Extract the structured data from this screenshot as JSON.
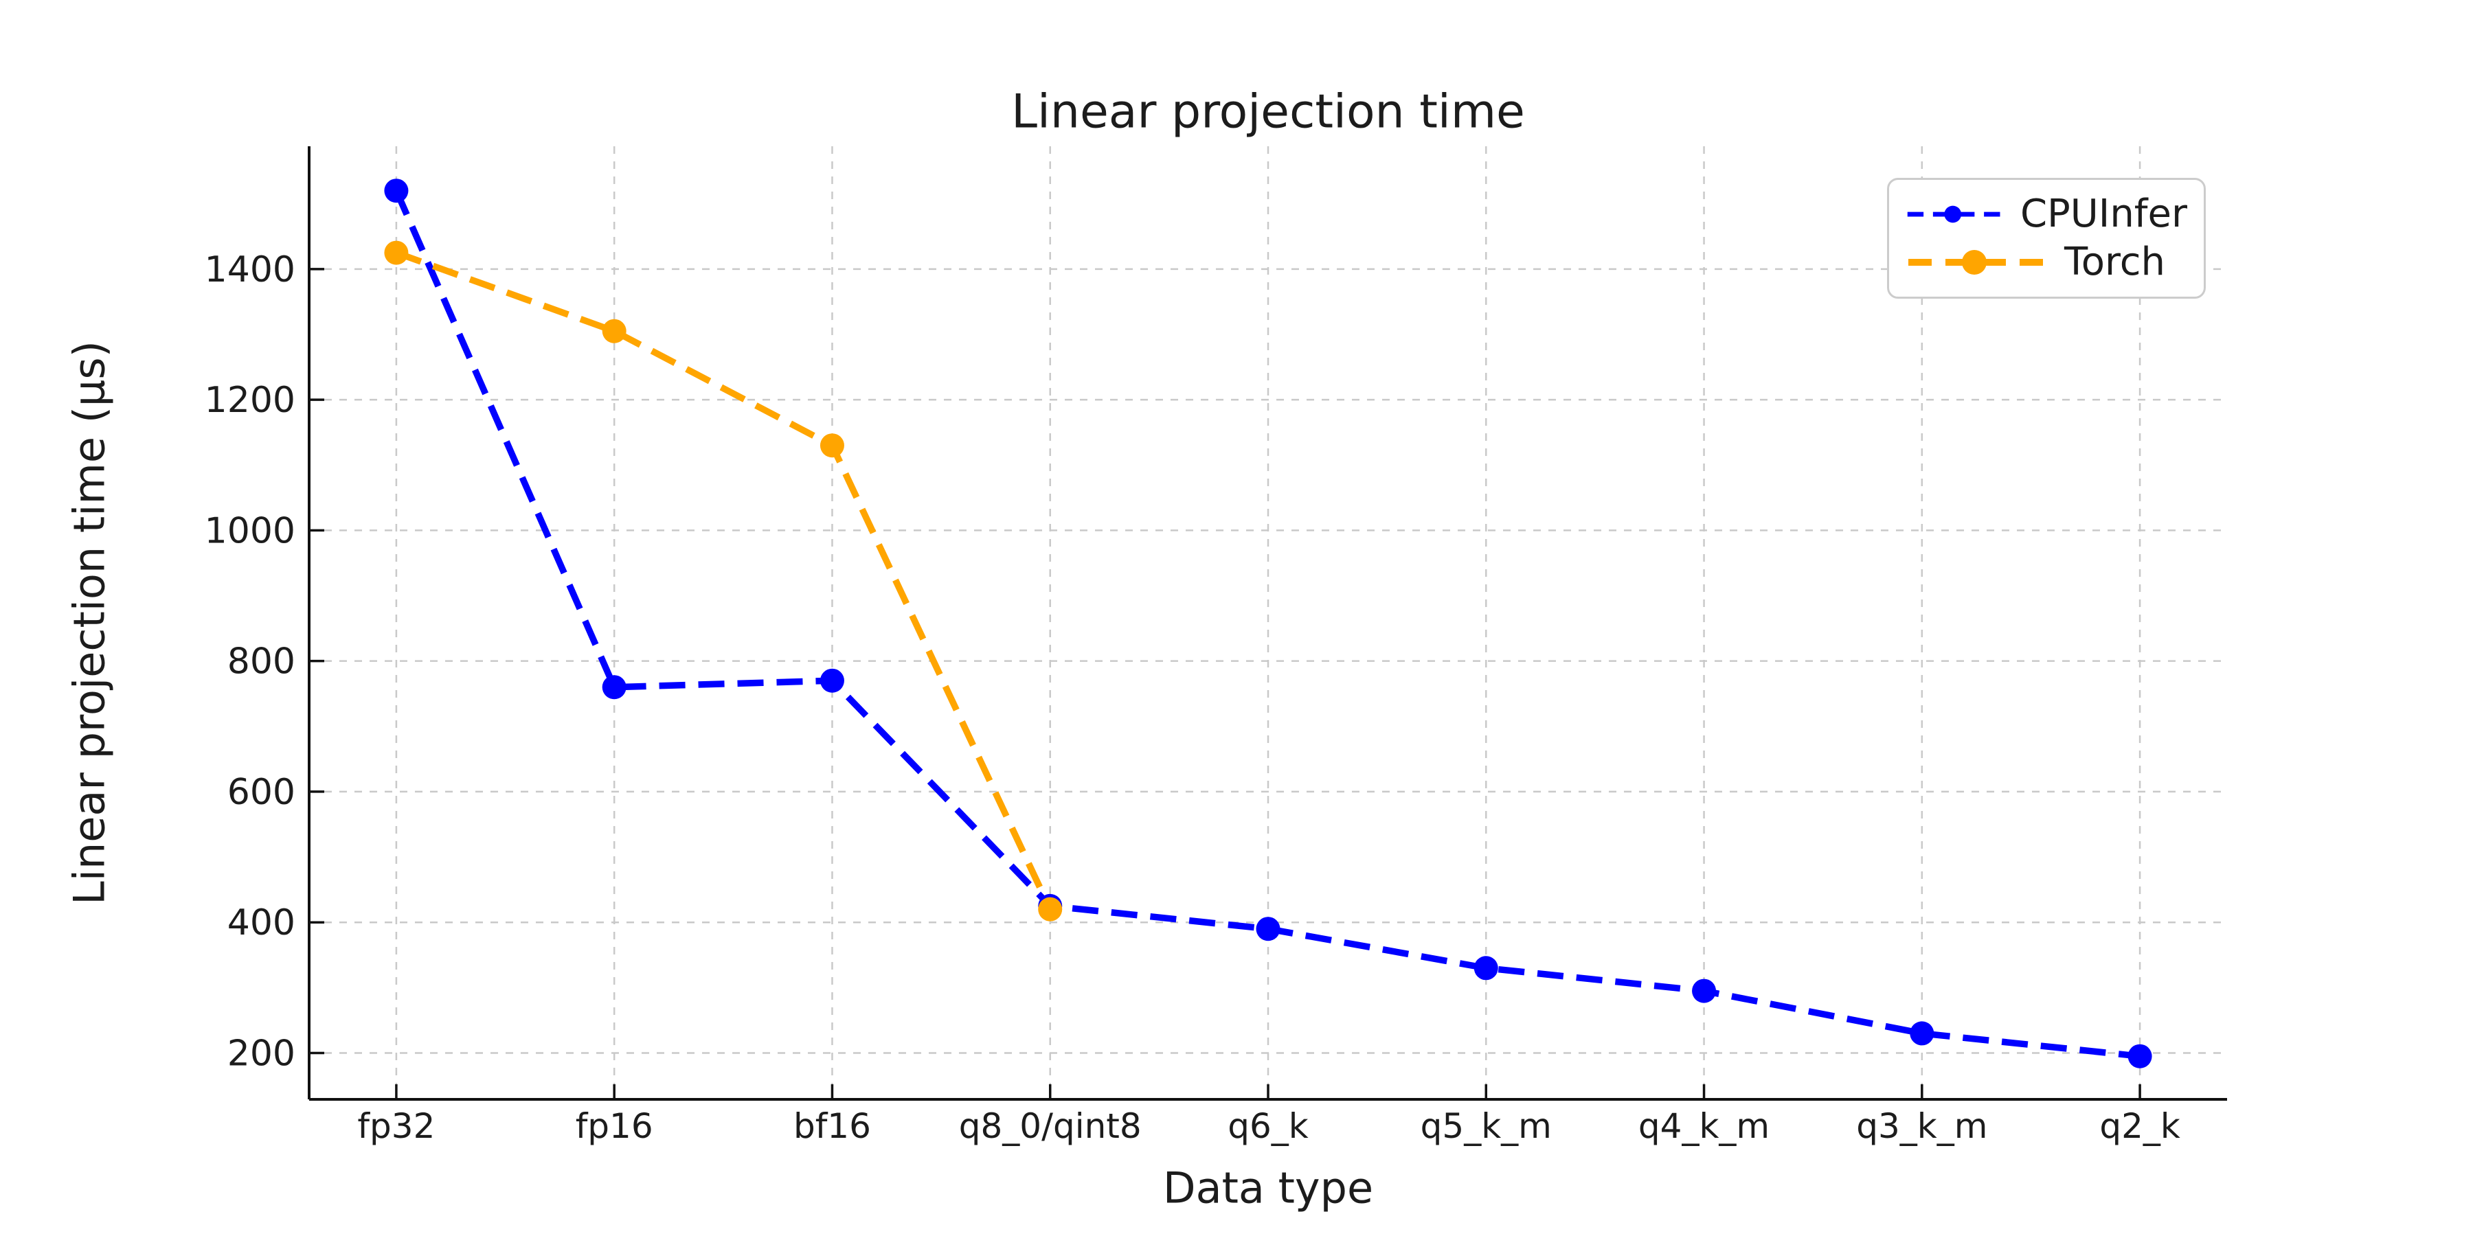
{
  "figure": {
    "background": "#ffffff"
  },
  "chart_data": {
    "type": "line",
    "title": "Linear projection time",
    "xlabel": "Data type",
    "ylabel": "Linear projection time (µs)",
    "categories": [
      "fp32",
      "fp16",
      "bf16",
      "q8_0/qint8",
      "q6_k",
      "q5_k_m",
      "q4_k_m",
      "q3_k_m",
      "q2_k"
    ],
    "series": [
      {
        "name": "CPUInfer",
        "color": "#0000ff",
        "values": [
          1520,
          760,
          770,
          425,
          390,
          330,
          295,
          230,
          195
        ]
      },
      {
        "name": "Torch",
        "color": "#ffa500",
        "values": [
          1425,
          1305,
          1130,
          420,
          null,
          null,
          null,
          null,
          null
        ]
      }
    ],
    "yticks": [
      200,
      400,
      600,
      800,
      1000,
      1200,
      1400
    ],
    "ylim": [
      129,
      1588
    ],
    "grid": true,
    "grid_style": "dashed",
    "line_style": "dashed",
    "marker": "circle",
    "legend_position": "upper right",
    "colors": {
      "text": "#1c1c1c",
      "grid": "#c9c9c9",
      "axis": "#111111",
      "legend_border": "#cccccc"
    }
  }
}
